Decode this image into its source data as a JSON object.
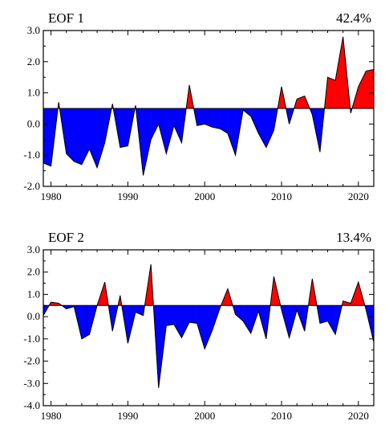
{
  "chart_data": [
    {
      "type": "area",
      "title": "EOF 1",
      "variance_label": "42.4%",
      "baseline": 0.5,
      "ylim": [
        -2.0,
        3.0
      ],
      "yticks": [
        3.0,
        2.0,
        1.0,
        0.0,
        -1.0,
        -2.0
      ],
      "ytick_labels": [
        "3.0",
        "2.0",
        "1.0",
        "0.0",
        "-1.0",
        "-2.0"
      ],
      "xlim": [
        1979,
        2022
      ],
      "xticks": [
        1980,
        1990,
        2000,
        2010,
        2020
      ],
      "xtick_labels": [
        "1980",
        "1990",
        "2000",
        "2010",
        "2020"
      ],
      "above_color": "#ff0000",
      "below_color": "#0000ff",
      "x": [
        1979,
        1980,
        1981,
        1982,
        1983,
        1984,
        1985,
        1986,
        1987,
        1988,
        1989,
        1990,
        1991,
        1992,
        1993,
        1994,
        1995,
        1996,
        1997,
        1998,
        1999,
        2000,
        2001,
        2002,
        2003,
        2004,
        2005,
        2006,
        2007,
        2008,
        2009,
        2010,
        2011,
        2012,
        2013,
        2014,
        2015,
        2016,
        2017,
        2018,
        2019,
        2020,
        2021,
        2022
      ],
      "values": [
        -1.25,
        -1.35,
        0.7,
        -0.95,
        -1.2,
        -1.3,
        -0.8,
        -1.4,
        -0.6,
        0.65,
        -0.75,
        -0.7,
        0.6,
        -1.65,
        -0.5,
        0.0,
        -0.95,
        -0.05,
        -0.6,
        1.25,
        -0.05,
        0.0,
        -0.1,
        -0.15,
        -0.3,
        -1.0,
        0.45,
        0.25,
        -0.3,
        -0.75,
        -0.2,
        1.2,
        0.0,
        0.8,
        0.9,
        0.3,
        -0.9,
        1.5,
        1.4,
        2.8,
        0.35,
        1.2,
        1.7,
        1.75
      ]
    },
    {
      "type": "area",
      "title": "EOF 2",
      "variance_label": "13.4%",
      "baseline": 0.5,
      "ylim": [
        -4.0,
        3.0
      ],
      "yticks": [
        3.0,
        2.0,
        1.0,
        0.0,
        -1.0,
        -2.0,
        -3.0,
        -4.0
      ],
      "ytick_labels": [
        "3.0",
        "2.0",
        "1.0",
        "0.0",
        "-1.0",
        "-2.0",
        "-3.0",
        "-4.0"
      ],
      "xlim": [
        1979,
        2022
      ],
      "xticks": [
        1980,
        1990,
        2000,
        2010,
        2020
      ],
      "xtick_labels": [
        "1980",
        "1990",
        "2000",
        "2010",
        "2020"
      ],
      "above_color": "#ff0000",
      "below_color": "#0000ff",
      "x": [
        1979,
        1980,
        1981,
        1982,
        1983,
        1984,
        1985,
        1986,
        1987,
        1988,
        1989,
        1990,
        1991,
        1992,
        1993,
        1994,
        1995,
        1996,
        1997,
        1998,
        1999,
        2000,
        2001,
        2002,
        2003,
        2004,
        2005,
        2006,
        2007,
        2008,
        2009,
        2010,
        2011,
        2012,
        2013,
        2014,
        2015,
        2016,
        2017,
        2018,
        2019,
        2020,
        2021,
        2022
      ],
      "values": [
        0.05,
        0.65,
        0.6,
        0.35,
        0.45,
        -1.0,
        -0.8,
        0.5,
        1.55,
        -0.65,
        0.95,
        -1.2,
        0.2,
        0.05,
        2.35,
        -3.2,
        -0.4,
        -0.35,
        -0.95,
        -0.25,
        -0.3,
        -1.45,
        -0.6,
        0.4,
        1.25,
        0.1,
        -0.2,
        -0.75,
        0.25,
        -1.0,
        1.8,
        0.3,
        -0.95,
        0.3,
        -0.65,
        1.7,
        -0.3,
        -0.2,
        -0.8,
        0.7,
        0.6,
        1.55,
        0.3,
        -1.15
      ]
    }
  ]
}
